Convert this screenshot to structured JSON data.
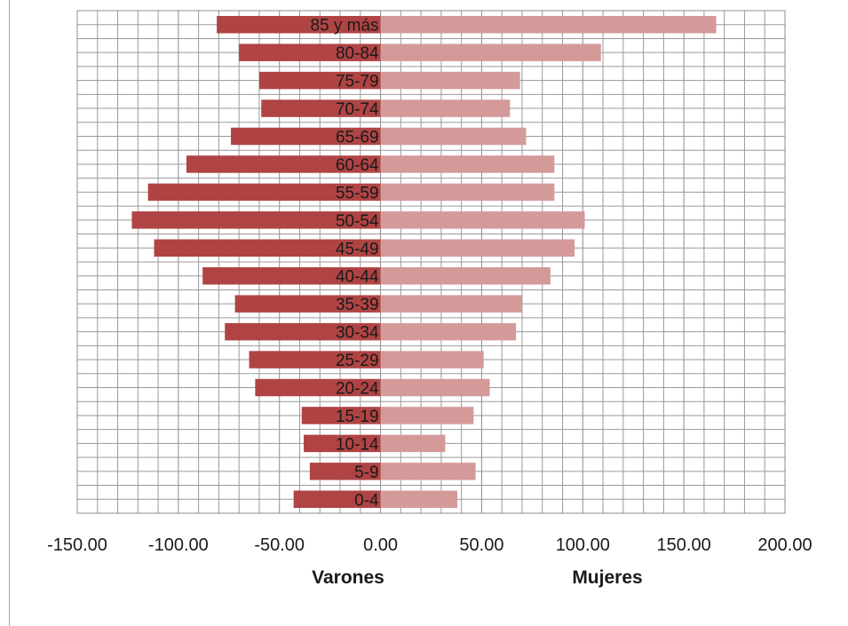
{
  "chart_data": {
    "type": "bar",
    "orientation": "horizontal",
    "categories": [
      "85 y más",
      "80-84",
      "75-79",
      "70-74",
      "65-69",
      "60-64",
      "55-59",
      "50-54",
      "45-49",
      "40-44",
      "35-39",
      "30-34",
      "25-29",
      "20-24",
      "15-19",
      "10-14",
      "5-9",
      "0-4"
    ],
    "series": [
      {
        "name": "Varones",
        "color": "#b04444",
        "values": [
          -81,
          -70,
          -60,
          -59,
          -74,
          -96,
          -115,
          -123,
          -112,
          -88,
          -72,
          -77,
          -65,
          -62,
          -39,
          -38,
          -35,
          -43
        ]
      },
      {
        "name": "Mujeres",
        "color": "#d49a9a",
        "values": [
          166,
          109,
          69,
          64,
          72,
          86,
          86,
          101,
          96,
          84,
          70,
          67,
          51,
          54,
          46,
          32,
          47,
          38
        ]
      }
    ],
    "xlim": [
      -150,
      200
    ],
    "xticks": [
      "-150.00",
      "-100.00",
      "-50.00",
      "0.00",
      "50.00",
      "100.00",
      "150.00",
      "200.00"
    ],
    "xlabel_left": "Varones",
    "xlabel_right": "Mujeres",
    "grid": true,
    "minor_grid_step": 10
  }
}
